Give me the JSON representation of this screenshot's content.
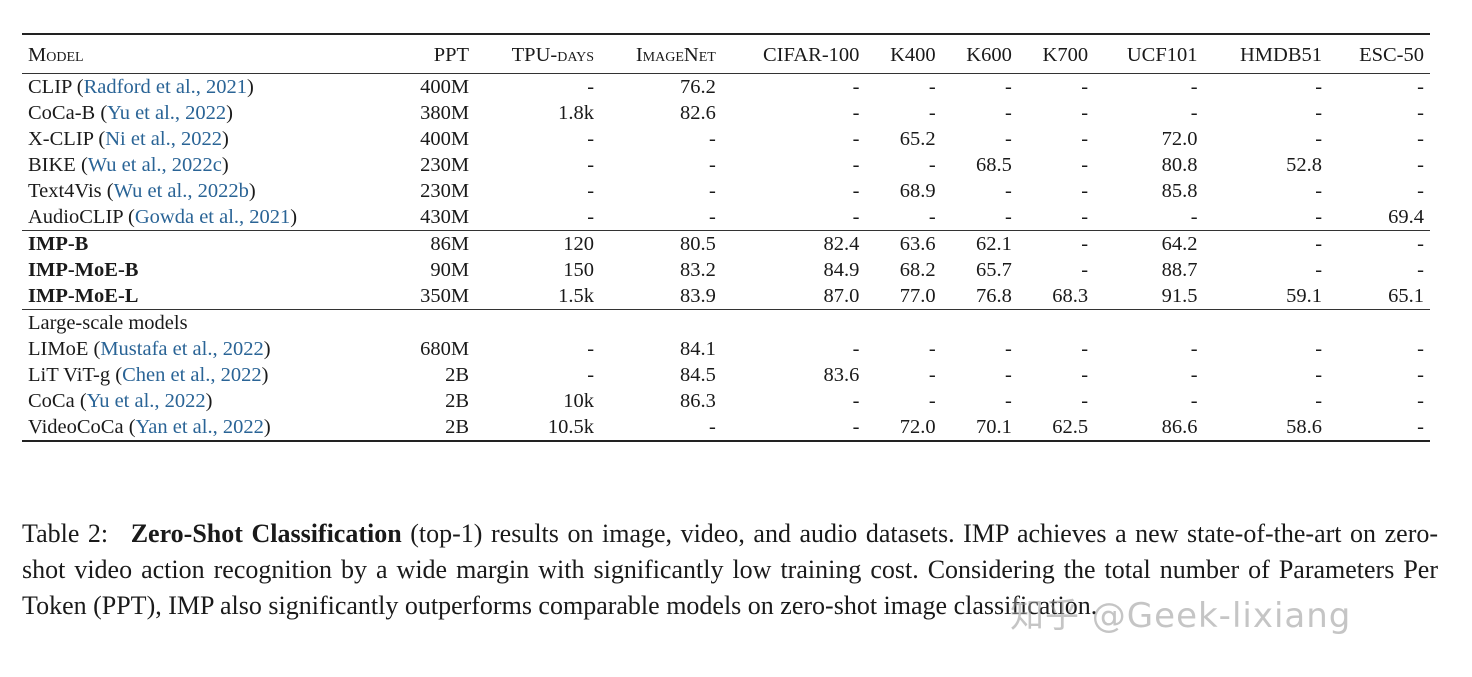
{
  "table": {
    "headers": [
      "Model",
      "PPT",
      "TPU-days",
      "ImageNet",
      "CIFAR-100",
      "K400",
      "K600",
      "K700",
      "UCF101",
      "HMDB51",
      "ESC-50"
    ],
    "group1": [
      {
        "name": "CLIP",
        "cite": "Radford et al., 2021",
        "cells": [
          "400M",
          "-",
          "76.2",
          "-",
          "-",
          "-",
          "-",
          "-",
          "-",
          "-"
        ]
      },
      {
        "name": "CoCa-B",
        "cite": "Yu et al., 2022",
        "cells": [
          "380M",
          "1.8k",
          "82.6",
          "-",
          "-",
          "-",
          "-",
          "-",
          "-",
          "-"
        ]
      },
      {
        "name": "X-CLIP",
        "cite": "Ni et al., 2022",
        "cells": [
          "400M",
          "-",
          "-",
          "-",
          "65.2",
          "-",
          "-",
          "72.0",
          "-",
          "-"
        ]
      },
      {
        "name": "BIKE",
        "cite": "Wu et al., 2022c",
        "cells": [
          "230M",
          "-",
          "-",
          "-",
          "-",
          "68.5",
          "-",
          "80.8",
          "52.8",
          "-"
        ]
      },
      {
        "name": "Text4Vis",
        "cite": "Wu et al., 2022b",
        "cells": [
          "230M",
          "-",
          "-",
          "-",
          "68.9",
          "-",
          "-",
          "85.8",
          "-",
          "-"
        ]
      },
      {
        "name": "AudioCLIP",
        "cite": "Gowda et al., 2021",
        "cells": [
          "430M",
          "-",
          "-",
          "-",
          "-",
          "-",
          "-",
          "-",
          "-",
          "69.4"
        ]
      }
    ],
    "group2": [
      {
        "name": "IMP-B",
        "cells": [
          "86M",
          "120",
          "80.5",
          "82.4",
          "63.6",
          "62.1",
          "-",
          "64.2",
          "-",
          "-"
        ]
      },
      {
        "name": "IMP-MoE-B",
        "cells": [
          "90M",
          "150",
          "83.2",
          "84.9",
          "68.2",
          "65.7",
          "-",
          "88.7",
          "-",
          "-"
        ]
      },
      {
        "name": "IMP-MoE-L",
        "cells": [
          "350M",
          "1.5k",
          "83.9",
          "87.0",
          "77.0",
          "76.8",
          "68.3",
          "91.5",
          "59.1",
          "65.1"
        ]
      }
    ],
    "group3_title": "Large-scale models",
    "group3": [
      {
        "name": "LIMoE",
        "cite": "Mustafa et al., 2022",
        "cells": [
          "680M",
          "-",
          "84.1",
          "-",
          "-",
          "-",
          "-",
          "-",
          "-",
          "-"
        ]
      },
      {
        "name": "LiT ViT-g",
        "cite": "Chen et al., 2022",
        "cells": [
          "2B",
          "-",
          "84.5",
          "83.6",
          "-",
          "-",
          "-",
          "-",
          "-",
          "-"
        ]
      },
      {
        "name": "CoCa",
        "cite": "Yu et al., 2022",
        "cells": [
          "2B",
          "10k",
          "86.3",
          "-",
          "-",
          "-",
          "-",
          "-",
          "-",
          "-"
        ]
      },
      {
        "name": "VideoCoCa",
        "cite": "Yan et al., 2022",
        "cells": [
          "2B",
          "10.5k",
          "-",
          "-",
          "72.0",
          "70.1",
          "62.5",
          "86.6",
          "58.6",
          "-"
        ]
      }
    ]
  },
  "caption": {
    "label": "Table 2:",
    "title": "Zero-Shot Classification",
    "text": "(top-1) results on image, video, and audio datasets. IMP achieves a new state-of-the-art on zero-shot video action recognition by a wide margin with significantly low training cost.  Considering the total number of Parameters Per Token (PPT), IMP also significantly outperforms comparable models on zero-shot image classification."
  },
  "watermark": "知乎 @Geek-lixiang"
}
